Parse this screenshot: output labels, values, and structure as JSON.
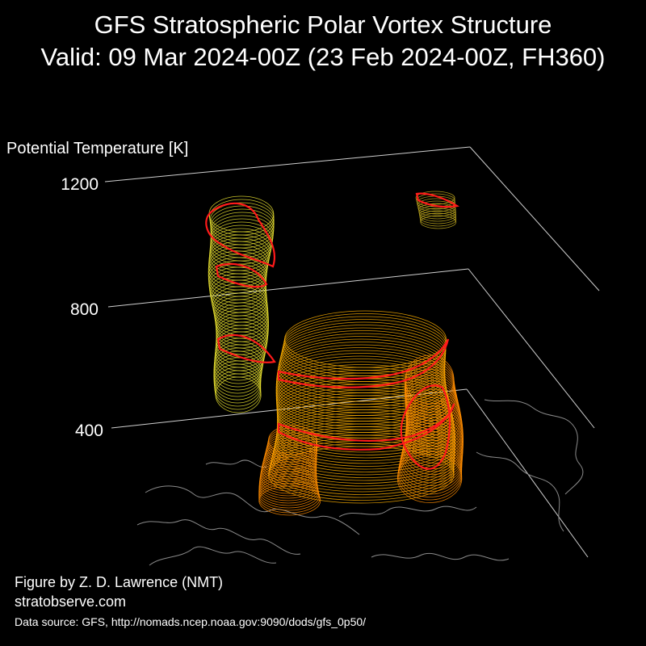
{
  "chart_data": {
    "type": "3d-isosurface",
    "title": "GFS Stratospheric Polar Vortex Structure",
    "subtitle": "Valid: 09 Mar 2024-00Z  (23 Feb 2024-00Z, FH360)",
    "zlabel": "Potential Temperature [K]",
    "z_ticks": [
      "400",
      "800",
      "1200"
    ],
    "colors": {
      "background": "#000000",
      "iso_low": "#ff8c00",
      "iso_mid": "#ffb000",
      "iso_high": "#e8e030",
      "highlight": "#ff1a1a",
      "coast": "#8a8a8a",
      "frame": "#cfcfcf"
    }
  },
  "credits": {
    "author": "Figure by Z. D. Lawrence (NMT)",
    "site": "stratobserve.com",
    "source": "Data source: GFS, http://nomads.ncep.noaa.gov:9090/dods/gfs_0p50/"
  }
}
